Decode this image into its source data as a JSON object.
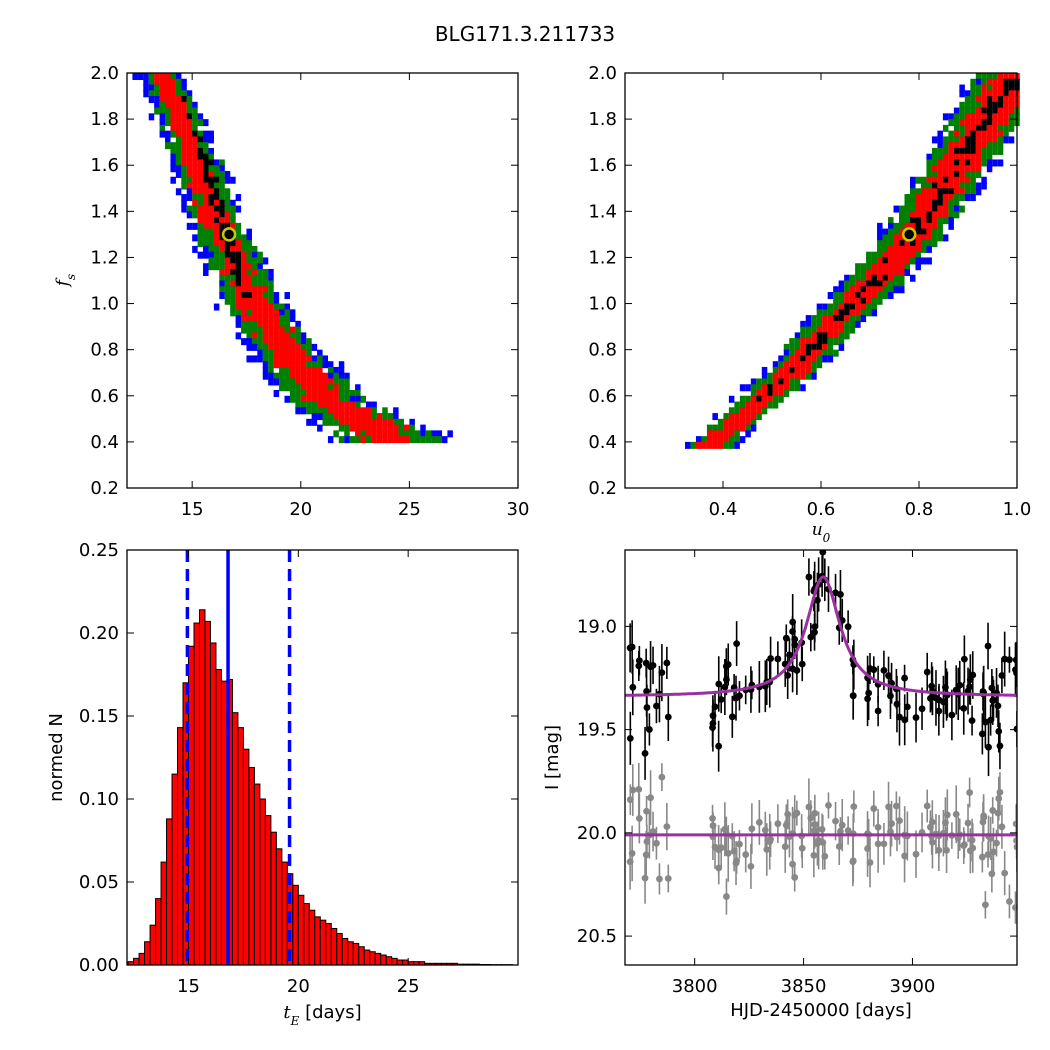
{
  "figure": {
    "title": "BLG171.3.211733"
  },
  "chart_data": [
    {
      "type": "heatmap",
      "panel": "top-left",
      "xlabel": "",
      "ylabel": "f_s",
      "xlim": [
        12,
        30
      ],
      "ylim": [
        0.2,
        2.0
      ],
      "xticks": [
        "15",
        "20",
        "25",
        "30"
      ],
      "yticks": [
        "0.2",
        "0.4",
        "0.6",
        "0.8",
        "1.0",
        "1.2",
        "1.4",
        "1.6",
        "1.8",
        "2.0"
      ],
      "levels": [
        "blue",
        "green",
        "red",
        "black"
      ],
      "colors": {
        "blue": "#0000ff",
        "green": "#008000",
        "red": "#ff0000",
        "black": "#000000"
      },
      "best_fit": {
        "x": 16.7,
        "y": 1.3,
        "marker_color": "#c8c800"
      },
      "ridge_x": [
        [
          13.5,
          2.0
        ],
        [
          14.4,
          1.8
        ],
        [
          15.2,
          1.6
        ],
        [
          15.9,
          1.4
        ],
        [
          16.8,
          1.2
        ],
        [
          17.8,
          1.0
        ],
        [
          19.2,
          0.8
        ],
        [
          21.0,
          0.6
        ],
        [
          24.0,
          0.44
        ]
      ],
      "ridge_width": [
        [
          2.0,
          1.3
        ],
        [
          1.6,
          1.5
        ],
        [
          1.2,
          1.7
        ],
        [
          0.8,
          2.0
        ],
        [
          0.6,
          2.4
        ],
        [
          0.44,
          3.0
        ]
      ]
    },
    {
      "type": "heatmap",
      "panel": "top-right",
      "xlabel": "u_0",
      "ylabel": "",
      "xlim": [
        0.2,
        1.0
      ],
      "ylim": [
        0.2,
        2.0
      ],
      "xticks": [
        "0.4",
        "0.6",
        "0.8",
        "1.0"
      ],
      "yticks": [
        "0.2",
        "0.4",
        "0.6",
        "0.8",
        "1.0",
        "1.2",
        "1.4",
        "1.6",
        "1.8",
        "2.0"
      ],
      "levels": [
        "blue",
        "green",
        "red",
        "black"
      ],
      "colors": {
        "blue": "#0000ff",
        "green": "#008000",
        "red": "#ff0000",
        "black": "#000000"
      },
      "best_fit": {
        "x": 0.78,
        "y": 1.3,
        "marker_color": "#c8c800"
      },
      "ridge_x": [
        [
          0.37,
          0.4
        ],
        [
          0.45,
          0.55
        ],
        [
          0.55,
          0.75
        ],
        [
          0.63,
          0.95
        ],
        [
          0.7,
          1.1
        ],
        [
          0.78,
          1.3
        ],
        [
          0.84,
          1.5
        ],
        [
          0.9,
          1.7
        ],
        [
          0.96,
          1.9
        ],
        [
          0.99,
          2.0
        ]
      ]
    },
    {
      "type": "bar",
      "panel": "bottom-left",
      "xlabel": "t_E  [days]",
      "ylabel": "normed N",
      "xlim": [
        12.2,
        30
      ],
      "ylim": [
        0,
        0.25
      ],
      "xticks": [
        "15",
        "20",
        "25"
      ],
      "yticks": [
        "0.00",
        "0.05",
        "0.10",
        "0.15",
        "0.20",
        "0.25"
      ],
      "bin_start": 12.25,
      "bin_width": 0.25,
      "values": [
        0.002,
        0.004,
        0.007,
        0.014,
        0.024,
        0.04,
        0.062,
        0.088,
        0.115,
        0.143,
        0.17,
        0.192,
        0.206,
        0.214,
        0.207,
        0.194,
        0.178,
        0.171,
        0.172,
        0.152,
        0.143,
        0.13,
        0.119,
        0.109,
        0.1,
        0.09,
        0.08,
        0.07,
        0.062,
        0.055,
        0.048,
        0.042,
        0.037,
        0.033,
        0.029,
        0.027,
        0.025,
        0.022,
        0.019,
        0.016,
        0.014,
        0.013,
        0.011,
        0.009,
        0.008,
        0.007,
        0.006,
        0.005,
        0.004,
        0.003,
        0.003,
        0.002,
        0.002,
        0.002,
        0.001,
        0.001,
        0.001,
        0.001,
        0.001,
        0.001,
        0.0005,
        0.0005,
        0.0005,
        0.0005,
        0.0003,
        0.0003,
        0.0002,
        0.0002,
        0.0002,
        0.0002
      ],
      "bar_color": "#ff0000",
      "vlines": [
        {
          "x": 16.8,
          "style": "solid",
          "color": "#0000ff"
        },
        {
          "x": 14.95,
          "style": "dashed",
          "color": "#0000ff"
        },
        {
          "x": 19.6,
          "style": "dashed",
          "color": "#0000ff"
        }
      ]
    },
    {
      "type": "scatter",
      "panel": "bottom-right",
      "xlabel": "HJD-2450000 [days]",
      "ylabel": "I [mag]",
      "xlim": [
        3768,
        3948
      ],
      "ylim": [
        20.64,
        18.63
      ],
      "xticks": [
        "3800",
        "3850",
        "3900"
      ],
      "yticks": [
        "19.0",
        "19.5",
        "20.0",
        "20.5"
      ],
      "model": {
        "t0": 3859,
        "baseline": 19.34,
        "amplitude": 0.58,
        "tau": 9.5,
        "color": "#9b30a0"
      },
      "residual_line": {
        "value": 20.01,
        "color": "#9b30a0"
      },
      "series": [
        {
          "name": "",
          "color": "#000000",
          "offset": 0
        },
        {
          "name": "",
          "color": "#888888",
          "offset": 0.68
        }
      ]
    }
  ]
}
